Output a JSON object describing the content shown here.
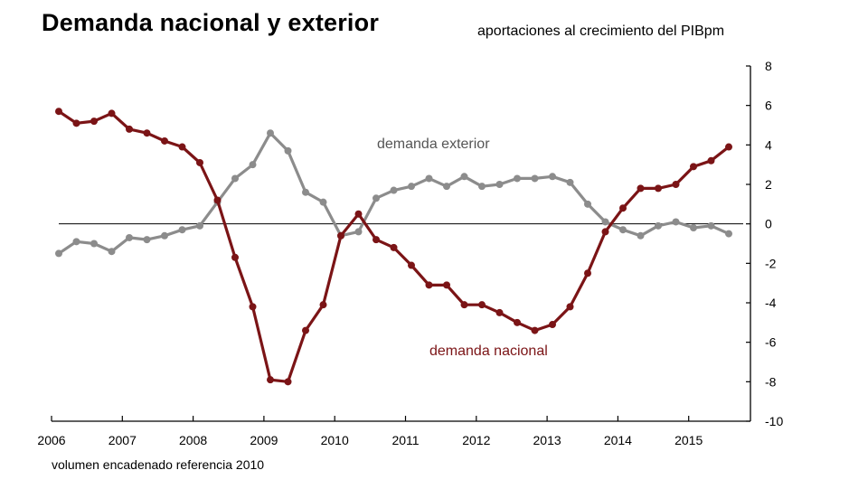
{
  "title": "Demanda nacional y exterior",
  "subtitle": "aportaciones al crecimiento del PIBpm",
  "footnote": "volumen encadenado referencia 2010",
  "chart_data": {
    "type": "line",
    "title": "Demanda nacional y exterior",
    "subtitle": "aportaciones al crecimiento del PIBpm",
    "ylim": [
      -10,
      8
    ],
    "yticks": [
      8,
      6,
      4,
      2,
      0,
      -2,
      -4,
      -6,
      -8,
      -10
    ],
    "xticks": [
      "2006",
      "2007",
      "2008",
      "2009",
      "2010",
      "2011",
      "2012",
      "2013",
      "2014",
      "2015"
    ],
    "grid": false,
    "zero_line": true,
    "x": [
      "2006-T1",
      "2006-T2",
      "2006-T3",
      "2006-T4",
      "2007-T1",
      "2007-T2",
      "2007-T3",
      "2007-T4",
      "2008-T1",
      "2008-T2",
      "2008-T3",
      "2008-T4",
      "2009-T1",
      "2009-T2",
      "2009-T3",
      "2009-T4",
      "2010-T1",
      "2010-T2",
      "2010-T3",
      "2010-T4",
      "2011-T1",
      "2011-T2",
      "2011-T3",
      "2011-T4",
      "2012-T1",
      "2012-T2",
      "2012-T3",
      "2012-T4",
      "2013-T1",
      "2013-T2",
      "2013-T3",
      "2013-T4",
      "2014-T1",
      "2014-T2",
      "2014-T3",
      "2014-T4",
      "2015-T1",
      "2015-T2",
      "2015-T3"
    ],
    "series": [
      {
        "name": "demanda nacional",
        "color": "#7b1416",
        "values": [
          5.7,
          5.1,
          5.2,
          5.6,
          4.8,
          4.6,
          4.2,
          3.9,
          3.1,
          1.2,
          -1.7,
          -4.2,
          -7.9,
          -8.0,
          -5.4,
          -4.1,
          -0.6,
          0.5,
          -0.8,
          -1.2,
          -2.1,
          -3.1,
          -3.1,
          -4.1,
          -4.1,
          -4.5,
          -5.0,
          -5.4,
          -5.1,
          -4.2,
          -2.5,
          -0.4,
          0.8,
          1.8,
          1.8,
          2.0,
          2.9,
          3.2,
          3.9
        ]
      },
      {
        "name": "demanda exterior",
        "color": "#8c8c8c",
        "values": [
          -1.5,
          -0.9,
          -1.0,
          -1.4,
          -0.7,
          -0.8,
          -0.6,
          -0.3,
          -0.1,
          1.1,
          2.3,
          3.0,
          4.6,
          3.7,
          1.6,
          1.1,
          -0.6,
          -0.4,
          1.3,
          1.7,
          1.9,
          2.3,
          1.9,
          2.4,
          1.9,
          2.0,
          2.3,
          2.3,
          2.4,
          2.1,
          1.0,
          0.1,
          -0.3,
          -0.6,
          -0.1,
          0.1,
          -0.2,
          -0.1,
          -0.5
        ]
      }
    ]
  }
}
